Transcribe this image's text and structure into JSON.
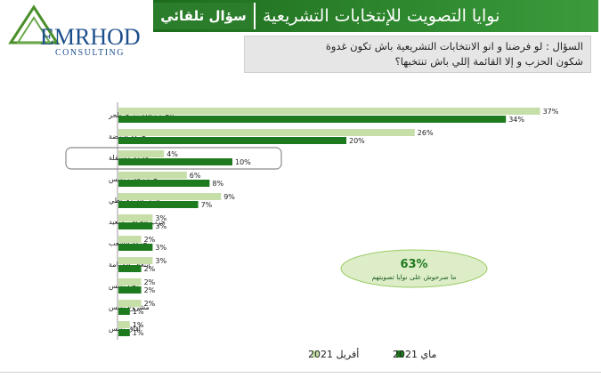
{
  "logo": {
    "name": "EMRHOD",
    "subtitle": "CONSULTING"
  },
  "header": {
    "tab": "سؤال تلقائي",
    "title": "نوايا التصويت للإنتخابات التشريعية"
  },
  "question": {
    "line1": "السؤال : لو فرضنا و انو الانتخابات التشريعية باش تكون غدوة",
    "line2": "شكون الحزب و إلا القائمة إللي باش تنتخبها؟"
  },
  "callout": {
    "value": "63%",
    "label": "ما صرحوش على نوايا تصويتهم"
  },
  "colors": {
    "april": "#c6dfa8",
    "may": "#1e7a1e",
    "accent": "#2b7d2b"
  },
  "chart_data": {
    "type": "bar",
    "orientation": "horizontal",
    "highlighted_category": "قائمة مستقلة",
    "categories": [
      "الحزب الدستوري الحر",
      "حركة النهضة",
      "قائمة مستقلة",
      "حزب قلب تونس",
      "التيار الديمقراطي",
      "حزب الصافي سعيد",
      "حركة الشعب",
      "إئتلاف الكرامة",
      "تحيا تونس",
      "مشروع تونس",
      "آفاق تونس"
    ],
    "series": [
      {
        "name": "أفريل 2021",
        "values": [
          37,
          26,
          4,
          6,
          9,
          3,
          2,
          3,
          2,
          2,
          1
        ]
      },
      {
        "name": "ماي 2021",
        "values": [
          34,
          20,
          10,
          8,
          7,
          3,
          3,
          2,
          2,
          1,
          1
        ]
      }
    ],
    "value_suffix": "%",
    "legend_position": "bottom"
  }
}
